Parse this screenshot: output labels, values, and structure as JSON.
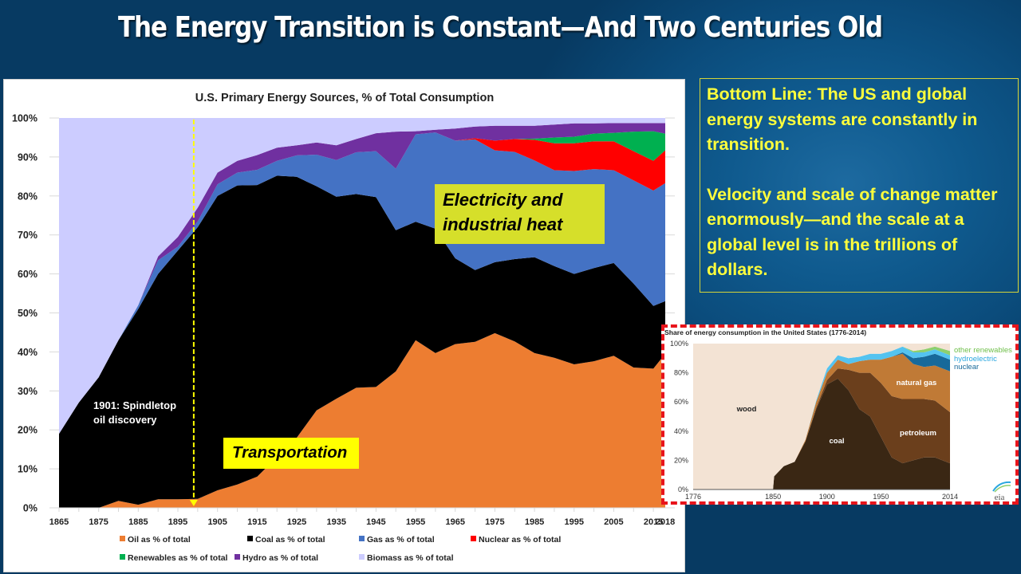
{
  "slide": {
    "title": "The Energy Transition is Constant—And Two Centuries Old"
  },
  "bottom_line": {
    "paragraph1": "Bottom Line: The US and global energy systems are constantly in transition.",
    "paragraph2": "Velocity and scale of change matter enormously—and the scale at a global level is in the trillions of dollars."
  },
  "annotations": {
    "electricity": "Electricity and industrial heat",
    "transportation": "Transportation",
    "spindletop_line1": "1901: Spindletop",
    "spindletop_line2": "oil discovery",
    "spindletop_year": 1899
  },
  "chart_data": [
    {
      "type": "area",
      "stacked": true,
      "title": "U.S. Primary Energy Sources, % of Total Consumption",
      "xlabel": "",
      "ylabel": "",
      "ylim": [
        0,
        100
      ],
      "xlim": [
        1865,
        2018
      ],
      "grid": false,
      "legend_position": "bottom",
      "y_ticks": [
        "0%",
        "10%",
        "20%",
        "30%",
        "40%",
        "50%",
        "60%",
        "70%",
        "80%",
        "90%",
        "100%"
      ],
      "x_tick_labels": [
        "1865",
        "1875",
        "1885",
        "1895",
        "1905",
        "1915",
        "1925",
        "1935",
        "1945",
        "1955",
        "1965",
        "1975",
        "1985",
        "1995",
        "2005",
        "2015",
        "2018"
      ],
      "x": [
        1865,
        1870,
        1875,
        1880,
        1885,
        1890,
        1895,
        1900,
        1905,
        1910,
        1915,
        1920,
        1925,
        1930,
        1935,
        1940,
        1945,
        1950,
        1955,
        1960,
        1965,
        1970,
        1975,
        1980,
        1985,
        1990,
        1995,
        2000,
        2005,
        2010,
        2015,
        2018
      ],
      "series": [
        {
          "name": "Oil as % of total",
          "color": "#ed7d31",
          "values": [
            0,
            0,
            0,
            1.8,
            0.8,
            2.2,
            2.2,
            2.3,
            4.5,
            6,
            8,
            13,
            18,
            25,
            28,
            30.8,
            31,
            35,
            43,
            39.7,
            42,
            42.6,
            44.8,
            42.7,
            39.7,
            38.5,
            36.8,
            37.6,
            39,
            36,
            35.7,
            39.5
          ]
        },
        {
          "name": "Coal as % of total",
          "color": "#000000",
          "values": [
            19,
            27,
            33.5,
            41.2,
            50.2,
            57.8,
            63.8,
            69.7,
            75.5,
            76.7,
            74.8,
            72.2,
            66.9,
            57.5,
            51.8,
            49.7,
            48.7,
            36.2,
            30.4,
            31.9,
            22,
            18.4,
            18.2,
            21.1,
            24.6,
            23.5,
            23.2,
            23.9,
            23.8,
            21.5,
            16.1,
            13.5
          ]
        },
        {
          "name": "Gas as % of total",
          "color": "#4472c4",
          "values": [
            0,
            0,
            0,
            0,
            1,
            3.5,
            1,
            1.5,
            3,
            3.3,
            3.9,
            3.8,
            5.5,
            8.1,
            9.4,
            10.7,
            11.8,
            15.8,
            22.4,
            24.7,
            30.2,
            33.5,
            28.7,
            27.5,
            24.8,
            24.6,
            26.4,
            25.4,
            23.8,
            26.5,
            29.6,
            30.3
          ]
        },
        {
          "name": "Nuclear as % of total",
          "color": "#ff0000",
          "values": [
            0,
            0,
            0,
            0,
            0,
            0,
            0,
            0,
            0,
            0,
            0,
            0,
            0,
            0,
            0,
            0,
            0,
            0,
            0,
            0,
            0,
            0.3,
            2.5,
            3.3,
            5.3,
            6.9,
            7.1,
            7.1,
            7.4,
            7.5,
            7.6,
            8.4
          ]
        },
        {
          "name": "Renewables as % of total",
          "color": "#00b050",
          "values": [
            0,
            0,
            0,
            0,
            0,
            0,
            0,
            0,
            0,
            0,
            0,
            0,
            0,
            0,
            0,
            0,
            0,
            0,
            0,
            0,
            0,
            0,
            0,
            0,
            0.3,
            1.5,
            1.7,
            2,
            2.2,
            5,
            7.6,
            4.3
          ]
        },
        {
          "name": "Hydro as % of total",
          "color": "#7030a0",
          "values": [
            0,
            0,
            0,
            0,
            0,
            1,
            2.5,
            3.5,
            3,
            3,
            3.8,
            3.4,
            2.6,
            3.1,
            3.8,
            3.4,
            4.6,
            9.5,
            0.8,
            0.7,
            3.1,
            3,
            3.8,
            3.4,
            3.3,
            3.3,
            3.4,
            2.6,
            2.5,
            2.2,
            2.1,
            2.7
          ]
        },
        {
          "name": "Biomass as % of total",
          "color": "#ccccff",
          "values": [
            81,
            73,
            66.5,
            57,
            48,
            35.5,
            30.5,
            23,
            14,
            11,
            9.5,
            7.6,
            7,
            6.3,
            7,
            5.4,
            3.9,
            3.5,
            3.4,
            3,
            2.7,
            2.2,
            2,
            2,
            2,
            1.7,
            1.4,
            1.4,
            1.3,
            1.3,
            1.3,
            1.3
          ]
        }
      ]
    },
    {
      "type": "area",
      "stacked": true,
      "title": "Share of energy consumption  in the United States (1776-2014)",
      "ylim": [
        0,
        100
      ],
      "xlim": [
        1776,
        2014
      ],
      "y_ticks": [
        "0%",
        "20%",
        "40%",
        "60%",
        "80%",
        "100%"
      ],
      "x_tick_labels": [
        "1776",
        "1850",
        "1900",
        "1950",
        "2014"
      ],
      "x": [
        1776,
        1850,
        1851,
        1860,
        1870,
        1880,
        1890,
        1900,
        1910,
        1920,
        1930,
        1940,
        1950,
        1960,
        1970,
        1980,
        1990,
        2000,
        2014
      ],
      "series": [
        {
          "name": "coal",
          "label": "coal",
          "color": "#3a2714",
          "values": [
            0,
            0,
            9,
            16,
            19,
            33,
            55,
            72,
            76,
            68,
            55,
            50,
            36,
            22,
            18,
            20,
            22,
            22,
            18
          ]
        },
        {
          "name": "petroleum",
          "label": "petroleum",
          "color": "#6b3f1c",
          "values": [
            0,
            0,
            0,
            0,
            0,
            0,
            1,
            3,
            7,
            14,
            25,
            30,
            37,
            42,
            44,
            42,
            40,
            39,
            35
          ]
        },
        {
          "name": "natural gas",
          "label": "natural gas",
          "color": "#c07a36",
          "values": [
            0,
            0,
            0,
            0,
            0,
            1,
            4,
            5,
            6,
            4,
            8,
            9,
            16,
            27,
            31,
            24,
            22,
            24,
            28
          ]
        },
        {
          "name": "nuclear",
          "label": "nuclear",
          "color": "#17699a",
          "values": [
            0,
            0,
            0,
            0,
            0,
            0,
            0,
            0,
            0,
            0,
            0,
            0,
            0,
            0,
            1,
            4,
            7,
            8,
            8
          ]
        },
        {
          "name": "hydroelectric",
          "label": "hydroelectric",
          "color": "#54c3f0",
          "values": [
            0,
            0,
            0,
            0,
            0,
            0,
            1,
            3,
            3,
            4,
            3,
            4,
            4,
            4,
            4,
            4,
            3,
            3,
            3
          ]
        },
        {
          "name": "other renewables",
          "label": "other renewables",
          "color": "#8dcf6e",
          "values": [
            0,
            0,
            0,
            0,
            0,
            0,
            0,
            0,
            0,
            0,
            0,
            0,
            0,
            0,
            0,
            1,
            2,
            2,
            3
          ]
        },
        {
          "name": "wood",
          "label": "wood",
          "color": "#f3e3d4",
          "values": [
            100,
            100,
            91,
            84,
            81,
            66,
            39,
            17,
            8,
            10,
            9,
            7,
            7,
            5,
            2,
            5,
            4,
            2,
            5
          ]
        }
      ],
      "logo_text": "eia"
    }
  ]
}
